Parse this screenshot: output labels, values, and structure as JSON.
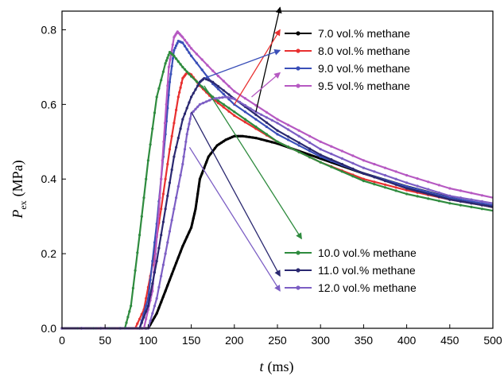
{
  "chart_data": {
    "type": "line",
    "xlabel_symbol": "t",
    "xlabel_unit": "(ms)",
    "ylabel_symbol": "P",
    "ylabel_subscript": "ex",
    "ylabel_unit": "(MPa)",
    "xlim": [
      0,
      500
    ],
    "ylim": [
      0.0,
      0.85
    ],
    "xticks": [
      0,
      50,
      100,
      150,
      200,
      250,
      300,
      350,
      400,
      450,
      500
    ],
    "yticks": [
      0.0,
      0.2,
      0.4,
      0.6,
      0.8
    ],
    "ytick_labels": [
      "0.0",
      "0.2",
      "0.4",
      "0.6",
      "0.8"
    ],
    "grid": false,
    "legend_placement": "split: top-right and bottom-right with arrows",
    "series": [
      {
        "name": "7.0 vol.% methane",
        "color": "#000000",
        "x": [
          0,
          100,
          110,
          120,
          130,
          140,
          150,
          155,
          160,
          170,
          180,
          190,
          200,
          210,
          225,
          250,
          300,
          350,
          400,
          450,
          500
        ],
        "y": [
          0.0,
          0.0,
          0.04,
          0.1,
          0.16,
          0.22,
          0.27,
          0.32,
          0.4,
          0.46,
          0.49,
          0.505,
          0.515,
          0.515,
          0.51,
          0.495,
          0.455,
          0.415,
          0.38,
          0.35,
          0.325
        ]
      },
      {
        "name": "8.0 vol.% methane",
        "color": "#e83030",
        "x": [
          0,
          85,
          95,
          105,
          115,
          125,
          135,
          140,
          145,
          150,
          160,
          175,
          200,
          250,
          300,
          350,
          400,
          450,
          500
        ],
        "y": [
          0.0,
          0.0,
          0.05,
          0.17,
          0.32,
          0.48,
          0.62,
          0.67,
          0.685,
          0.68,
          0.65,
          0.615,
          0.57,
          0.5,
          0.445,
          0.4,
          0.37,
          0.345,
          0.325
        ]
      },
      {
        "name": "9.0 vol.% methane",
        "color": "#3a4fb8",
        "x": [
          0,
          90,
          100,
          110,
          120,
          125,
          130,
          135,
          140,
          150,
          175,
          200,
          250,
          300,
          350,
          400,
          450,
          500
        ],
        "y": [
          0.0,
          0.0,
          0.08,
          0.28,
          0.52,
          0.66,
          0.745,
          0.77,
          0.765,
          0.73,
          0.655,
          0.6,
          0.52,
          0.46,
          0.415,
          0.38,
          0.35,
          0.33
        ]
      },
      {
        "name": "9.5 vol.% methane",
        "color": "#b659c2",
        "x": [
          0,
          95,
          105,
          112,
          118,
          124,
          130,
          134,
          140,
          150,
          175,
          200,
          250,
          300,
          350,
          400,
          450,
          500
        ],
        "y": [
          0.0,
          0.0,
          0.1,
          0.3,
          0.5,
          0.7,
          0.78,
          0.795,
          0.78,
          0.75,
          0.69,
          0.635,
          0.56,
          0.5,
          0.45,
          0.41,
          0.375,
          0.35
        ]
      },
      {
        "name": "10.0 vol.% methane",
        "color": "#2e8b3e",
        "x": [
          0,
          73,
          80,
          90,
          100,
          110,
          120,
          125,
          130,
          140,
          150,
          175,
          200,
          250,
          300,
          350,
          400,
          450,
          500
        ],
        "y": [
          0.0,
          0.0,
          0.06,
          0.25,
          0.45,
          0.62,
          0.71,
          0.74,
          0.73,
          0.7,
          0.675,
          0.62,
          0.58,
          0.5,
          0.445,
          0.395,
          0.36,
          0.335,
          0.315
        ]
      },
      {
        "name": "11.0 vol.% methane",
        "color": "#2a2870",
        "x": [
          0,
          90,
          100,
          110,
          120,
          130,
          140,
          150,
          160,
          165,
          175,
          200,
          250,
          300,
          350,
          400,
          450,
          500
        ],
        "y": [
          0.0,
          0.0,
          0.06,
          0.18,
          0.32,
          0.46,
          0.56,
          0.62,
          0.66,
          0.67,
          0.66,
          0.615,
          0.53,
          0.465,
          0.415,
          0.375,
          0.345,
          0.325
        ]
      },
      {
        "name": "12.0 vol.% methane",
        "color": "#7c5ec4",
        "x": [
          0,
          100,
          110,
          120,
          130,
          140,
          145,
          150,
          160,
          175,
          190,
          200,
          225,
          250,
          300,
          350,
          400,
          450,
          500
        ],
        "y": [
          0.0,
          0.0,
          0.08,
          0.2,
          0.32,
          0.44,
          0.52,
          0.575,
          0.6,
          0.615,
          0.62,
          0.615,
          0.58,
          0.55,
          0.48,
          0.43,
          0.39,
          0.355,
          0.335
        ]
      }
    ],
    "legend_top": [
      0,
      1,
      2,
      3
    ],
    "legend_bottom": [
      4,
      5,
      6
    ],
    "arrows": [
      {
        "series": 0,
        "from": [
          225,
          0.58
        ],
        "to": [
          253,
          0.86
        ]
      },
      {
        "series": 1,
        "from": [
          200,
          0.6
        ],
        "to": [
          253,
          0.8
        ]
      },
      {
        "series": 2,
        "from": [
          165,
          0.67
        ],
        "to": [
          253,
          0.745
        ]
      },
      {
        "series": 3,
        "from": [
          220,
          0.62
        ],
        "to": [
          253,
          0.685
        ]
      },
      {
        "series": 4,
        "from": [
          165,
          0.65
        ],
        "to": [
          278,
          0.24
        ]
      },
      {
        "series": 5,
        "from": [
          150,
          0.58
        ],
        "to": [
          253,
          0.14
        ]
      },
      {
        "series": 6,
        "from": [
          148,
          0.485
        ],
        "to": [
          253,
          0.1
        ]
      }
    ]
  }
}
